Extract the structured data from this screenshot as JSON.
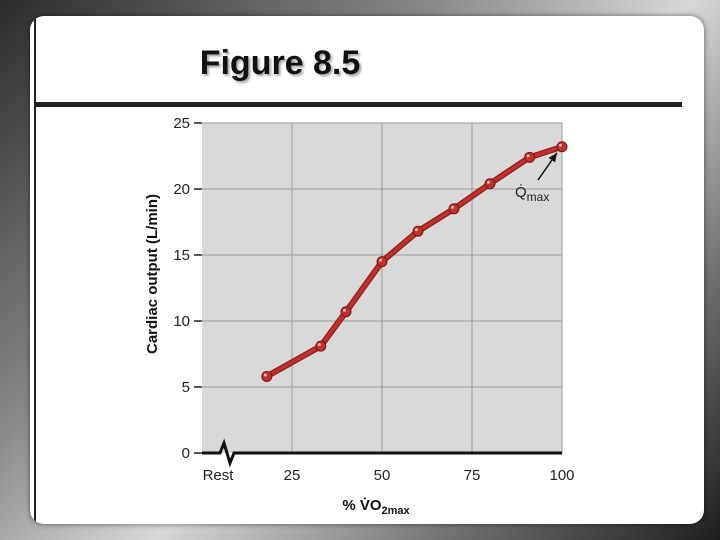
{
  "slide": {
    "title": "Figure 8.5"
  },
  "chart_data": {
    "type": "line",
    "title": "",
    "ylabel": "Cardiac output (L/min)",
    "xlabel": "% V̇O2max",
    "xlabel_main": "% V̇O",
    "xlabel_sub": "2max",
    "ylim": [
      0,
      25
    ],
    "xlim": [
      0,
      100
    ],
    "yticks": [
      "0",
      "5",
      "10",
      "15",
      "20",
      "25"
    ],
    "xticks": [
      "Rest",
      "25",
      "50",
      "75",
      "100"
    ],
    "grid": true,
    "series": [
      {
        "color": "#c0302d",
        "x": [
          18,
          33,
          40,
          50,
          60,
          70,
          80,
          91,
          100
        ],
        "y": [
          5.8,
          8.1,
          10.7,
          14.5,
          16.8,
          18.5,
          20.4,
          22.4,
          23.2
        ]
      }
    ],
    "annotation": {
      "main": "Q̇",
      "sub": "max"
    }
  }
}
